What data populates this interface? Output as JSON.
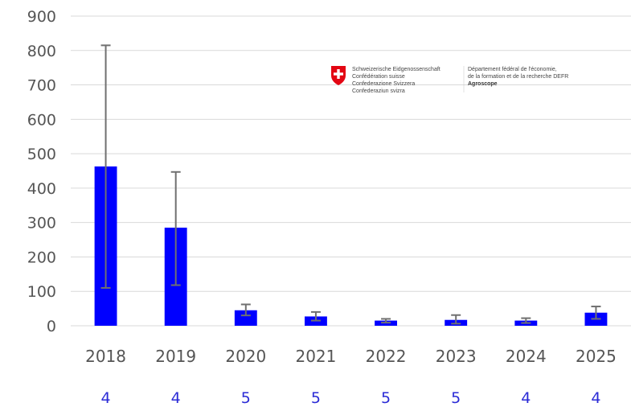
{
  "chart_data": {
    "type": "bar",
    "categories": [
      "2018",
      "2019",
      "2020",
      "2021",
      "2022",
      "2023",
      "2024",
      "2025"
    ],
    "values": [
      463,
      285,
      45,
      27,
      15,
      17,
      15,
      38
    ],
    "error_low": [
      110,
      118,
      30,
      15,
      9,
      6,
      8,
      20
    ],
    "error_high": [
      815,
      447,
      62,
      40,
      20,
      31,
      22,
      56
    ],
    "sample_sizes": [
      "4",
      "4",
      "5",
      "5",
      "5",
      "5",
      "4",
      "4"
    ],
    "ylim": [
      0,
      900
    ],
    "yticks": [
      "0",
      "100",
      "200",
      "300",
      "400",
      "500",
      "600",
      "700",
      "800",
      "900"
    ],
    "title": "",
    "xlabel": "",
    "ylabel": "",
    "grid": true,
    "bar_color": "#0000ff",
    "errorbar_color": "#707070"
  },
  "logo": {
    "icon": "swiss-cross-shield-icon",
    "color": "#e30613",
    "left_lines": [
      "Schweizerische Eidgenossenschaft",
      "Confédération suisse",
      "Confederazione Svizzera",
      "Confederaziun svizra"
    ],
    "right_lines": [
      "Département fédéral de l'économie,",
      "de la formation et de la recherche DEFR"
    ],
    "org": "Agroscope"
  }
}
